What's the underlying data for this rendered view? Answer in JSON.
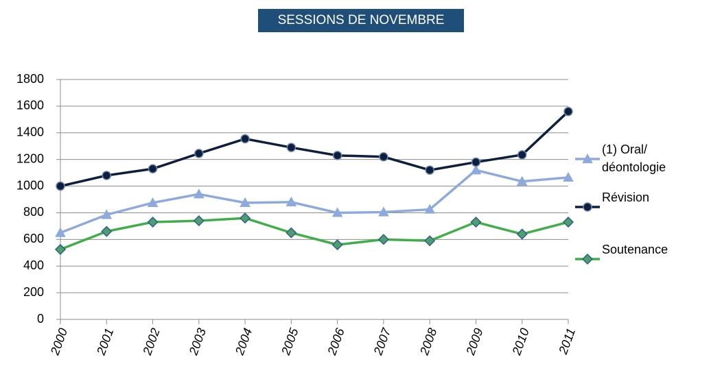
{
  "chart_data": {
    "type": "line",
    "title": "SESSIONS DE NOVEMBRE",
    "categories": [
      "2000",
      "2001",
      "2002",
      "2003",
      "2004",
      "2005",
      "2006",
      "2007",
      "2008",
      "2009",
      "2010",
      "2011"
    ],
    "series": [
      {
        "name": "(1) Oral/ déontologie",
        "color": "#8eaadc",
        "marker": "triangle",
        "values": [
          650,
          785,
          875,
          940,
          875,
          880,
          800,
          805,
          825,
          1120,
          1035,
          1065
        ]
      },
      {
        "name": "Révision",
        "color": "#0e1f3d",
        "marker": "circle",
        "values": [
          1000,
          1080,
          1130,
          1245,
          1355,
          1290,
          1230,
          1220,
          1120,
          1180,
          1235,
          1560
        ]
      },
      {
        "name": "Soutenance",
        "color": "#3fae48",
        "marker": "diamond",
        "values": [
          525,
          660,
          730,
          740,
          760,
          650,
          560,
          600,
          590,
          730,
          640,
          730
        ]
      }
    ],
    "ylim": [
      0,
      1800
    ],
    "yticks": [
      0,
      200,
      400,
      600,
      800,
      1000,
      1200,
      1400,
      1600,
      1800
    ],
    "grid": true
  }
}
